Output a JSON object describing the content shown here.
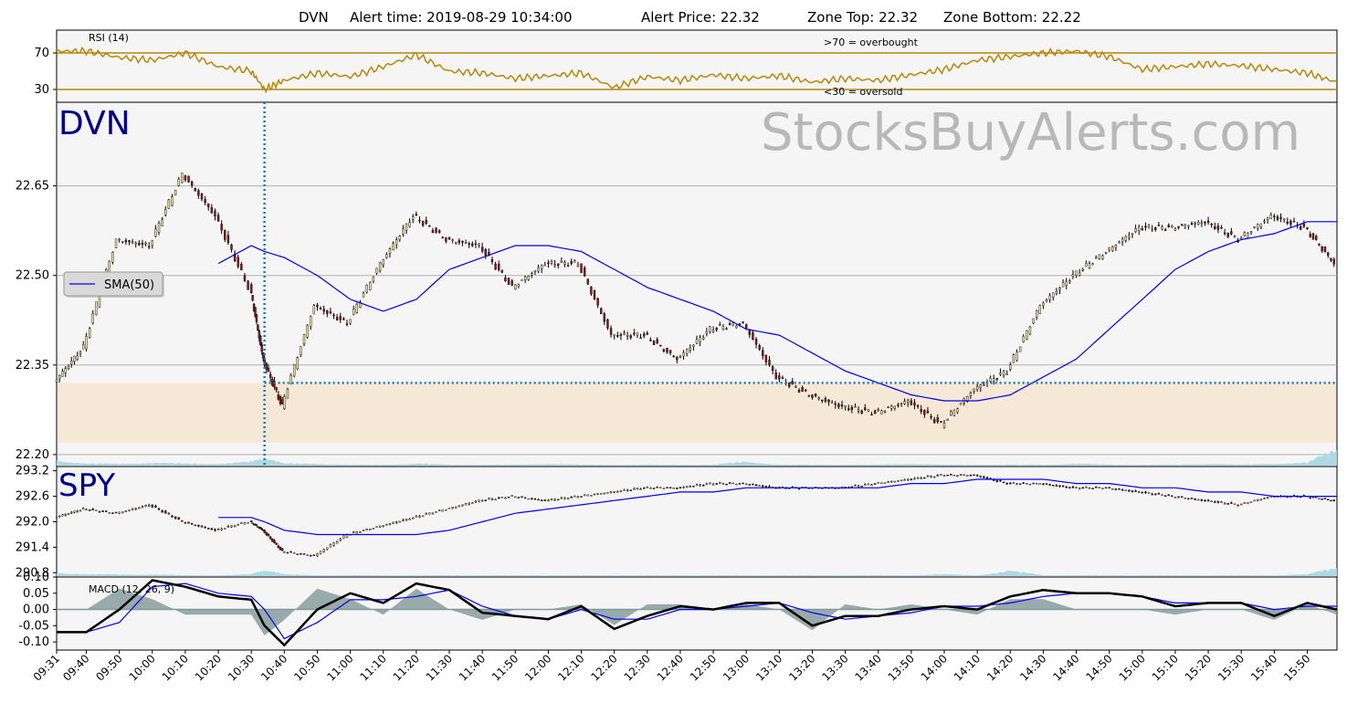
{
  "header": {
    "ticker": "DVN",
    "alert_time_label": "Alert time: 2019-08-29 10:34:00",
    "alert_price_label": "Alert Price: 22.32",
    "zone_top_label": "Zone Top: 22.32",
    "zone_bottom_label": "Zone Bottom: 22.22"
  },
  "watermark": "StocksBuyAlerts.com",
  "colors": {
    "rsi": "#b8860b",
    "sma": "#0000ee",
    "zone": "#f5e8d6",
    "volume": "#add8e6",
    "alert_line": "#1f77b4",
    "macd": "#000000",
    "signal": "#0000ee",
    "histogram": "#708a8a",
    "panel_bg": "#f5f5f5"
  },
  "x_ticks": [
    "09:31",
    "09:40",
    "09:50",
    "10:00",
    "10:10",
    "10:20",
    "10:30",
    "10:40",
    "10:50",
    "11:00",
    "11:10",
    "11:20",
    "11:30",
    "11:40",
    "11:50",
    "12:00",
    "12:10",
    "12:20",
    "12:30",
    "12:40",
    "12:50",
    "13:00",
    "13:10",
    "13:20",
    "13:30",
    "13:40",
    "13:50",
    "14:00",
    "14:10",
    "14:20",
    "14:30",
    "14:40",
    "14:50",
    "15:00",
    "15:10",
    "15:20",
    "15:30",
    "15:40",
    "15:50"
  ],
  "chart_data": [
    {
      "type": "line",
      "panel": "rsi",
      "title": "RSI (14)",
      "ylim": [
        16,
        95
      ],
      "yticks": [
        "70",
        "30"
      ],
      "reference_lines": [
        70,
        30
      ],
      "annotations": [
        ">70 = overbought",
        "<30 = oversold"
      ],
      "x": [
        "09:31",
        "09:40",
        "09:50",
        "10:00",
        "10:10",
        "10:20",
        "10:30",
        "10:34",
        "10:40",
        "10:50",
        "11:00",
        "11:10",
        "11:20",
        "11:30",
        "11:40",
        "11:50",
        "12:00",
        "12:10",
        "12:20",
        "12:30",
        "12:40",
        "12:50",
        "13:00",
        "13:10",
        "13:20",
        "13:30",
        "13:40",
        "13:50",
        "14:00",
        "14:10",
        "14:20",
        "14:30",
        "14:40",
        "14:50",
        "15:00",
        "15:10",
        "15:20",
        "15:30",
        "15:40",
        "15:50",
        "15:59"
      ],
      "values": [
        72,
        72,
        65,
        62,
        70,
        55,
        50,
        30,
        40,
        48,
        44,
        55,
        68,
        50,
        48,
        42,
        45,
        48,
        32,
        44,
        40,
        46,
        42,
        45,
        38,
        42,
        40,
        46,
        52,
        62,
        66,
        70,
        72,
        66,
        52,
        55,
        58,
        56,
        52,
        48,
        38
      ]
    },
    {
      "type": "candlestick",
      "panel": "price",
      "title": "DVN",
      "ylim": [
        22.18,
        22.79
      ],
      "yticks": [
        "22.65",
        "22.50",
        "22.35",
        "22.20"
      ],
      "alert": {
        "time": "10:34",
        "price": 22.32
      },
      "zone": {
        "top": 22.32,
        "bottom": 22.22
      },
      "legend": "SMA(50)",
      "x": [
        "09:31",
        "09:40",
        "09:50",
        "10:00",
        "10:10",
        "10:20",
        "10:30",
        "10:34",
        "10:40",
        "10:50",
        "11:00",
        "11:10",
        "11:20",
        "11:30",
        "11:40",
        "11:50",
        "12:00",
        "12:10",
        "12:20",
        "12:30",
        "12:40",
        "12:50",
        "13:00",
        "13:10",
        "13:20",
        "13:30",
        "13:40",
        "13:50",
        "14:00",
        "14:10",
        "14:20",
        "14:30",
        "14:40",
        "14:50",
        "15:00",
        "15:10",
        "15:20",
        "15:30",
        "15:40",
        "15:50",
        "15:59"
      ],
      "values": [
        22.32,
        22.38,
        22.56,
        22.55,
        22.67,
        22.6,
        22.48,
        22.36,
        22.28,
        22.45,
        22.42,
        22.52,
        22.6,
        22.56,
        22.55,
        22.48,
        22.52,
        22.52,
        22.4,
        22.4,
        22.36,
        22.41,
        22.42,
        22.33,
        22.3,
        22.28,
        22.27,
        22.29,
        22.25,
        22.31,
        22.34,
        22.45,
        22.5,
        22.54,
        22.58,
        22.58,
        22.59,
        22.56,
        22.6,
        22.58,
        22.52
      ],
      "sma50": [
        null,
        null,
        null,
        null,
        null,
        22.52,
        22.55,
        22.54,
        22.53,
        22.5,
        22.46,
        22.44,
        22.46,
        22.51,
        22.53,
        22.55,
        22.55,
        22.54,
        22.51,
        22.48,
        22.46,
        22.44,
        22.41,
        22.4,
        22.37,
        22.34,
        22.32,
        22.3,
        22.29,
        22.29,
        22.3,
        22.33,
        22.36,
        22.41,
        22.46,
        22.51,
        22.54,
        22.56,
        22.57,
        22.59,
        22.59
      ],
      "volume": [
        0.3,
        0.1,
        0.1,
        0.15,
        0.1,
        0.1,
        0.2,
        0.45,
        0.1,
        0.1,
        0.05,
        0.05,
        0.1,
        0.05,
        0.05,
        0.05,
        0.1,
        0.05,
        0.05,
        0.05,
        0.05,
        0.05,
        0.2,
        0.05,
        0.05,
        0.05,
        0.05,
        0.1,
        0.05,
        0.05,
        0.05,
        0.05,
        0.1,
        0.05,
        0.05,
        0.05,
        0.1,
        0.05,
        0.1,
        0.15,
        0.9
      ]
    },
    {
      "type": "candlestick",
      "panel": "spy",
      "title": "SPY",
      "ylim": [
        290.7,
        293.3
      ],
      "yticks": [
        "293.2",
        "292.6",
        "292.0",
        "291.4",
        "290.8"
      ],
      "x": [
        "09:31",
        "09:40",
        "09:50",
        "10:00",
        "10:10",
        "10:20",
        "10:30",
        "10:34",
        "10:40",
        "10:50",
        "11:00",
        "11:10",
        "11:20",
        "11:30",
        "11:40",
        "11:50",
        "12:00",
        "12:10",
        "12:20",
        "12:30",
        "12:40",
        "12:50",
        "13:00",
        "13:10",
        "13:20",
        "13:30",
        "13:40",
        "13:50",
        "14:00",
        "14:10",
        "14:20",
        "14:30",
        "14:40",
        "14:50",
        "15:00",
        "15:10",
        "15:20",
        "15:30",
        "15:40",
        "15:50",
        "15:59"
      ],
      "values": [
        292.1,
        292.3,
        292.2,
        292.4,
        292.0,
        291.8,
        292.0,
        291.8,
        291.3,
        291.2,
        291.7,
        291.9,
        292.1,
        292.3,
        292.5,
        292.6,
        292.5,
        292.6,
        292.7,
        292.8,
        292.8,
        292.9,
        292.9,
        292.8,
        292.8,
        292.8,
        292.9,
        293.0,
        293.1,
        293.1,
        292.9,
        292.9,
        292.8,
        292.8,
        292.7,
        292.6,
        292.5,
        292.4,
        292.6,
        292.6,
        292.5
      ],
      "sma50": [
        null,
        null,
        null,
        null,
        null,
        292.1,
        292.1,
        292.0,
        291.8,
        291.7,
        291.7,
        291.7,
        291.7,
        291.8,
        292.0,
        292.2,
        292.3,
        292.4,
        292.5,
        292.6,
        292.7,
        292.7,
        292.8,
        292.8,
        292.8,
        292.8,
        292.8,
        292.9,
        292.9,
        293.0,
        293.0,
        293.0,
        292.9,
        292.9,
        292.8,
        292.8,
        292.7,
        292.7,
        292.6,
        292.6,
        292.6
      ],
      "volume": [
        0.2,
        0.1,
        0.1,
        0.1,
        0.05,
        0.05,
        0.1,
        0.4,
        0.1,
        0.05,
        0.05,
        0.05,
        0.05,
        0.05,
        0.05,
        0.05,
        0.05,
        0.05,
        0.05,
        0.05,
        0.05,
        0.05,
        0.05,
        0.05,
        0.05,
        0.05,
        0.05,
        0.05,
        0.1,
        0.05,
        0.3,
        0.05,
        0.05,
        0.05,
        0.05,
        0.05,
        0.05,
        0.05,
        0.05,
        0.1,
        0.5
      ]
    },
    {
      "type": "line",
      "panel": "macd",
      "title": "MACD (12, 26, 9)",
      "ylim": [
        -0.125,
        0.1
      ],
      "yticks": [
        "0.10",
        "0.05",
        "0.00",
        "-0.05",
        "-0.10"
      ],
      "x": [
        "09:31",
        "09:40",
        "09:50",
        "10:00",
        "10:10",
        "10:20",
        "10:30",
        "10:34",
        "10:40",
        "10:50",
        "11:00",
        "11:10",
        "11:20",
        "11:30",
        "11:40",
        "11:50",
        "12:00",
        "12:10",
        "12:20",
        "12:30",
        "12:40",
        "12:50",
        "13:00",
        "13:10",
        "13:20",
        "13:30",
        "13:40",
        "13:50",
        "14:00",
        "14:10",
        "14:20",
        "14:30",
        "14:40",
        "14:50",
        "15:00",
        "15:10",
        "15:20",
        "15:30",
        "15:40",
        "15:50",
        "15:59"
      ],
      "series": [
        {
          "name": "macd",
          "values": [
            -0.07,
            -0.07,
            0.0,
            0.09,
            0.07,
            0.04,
            0.03,
            -0.05,
            -0.11,
            0.0,
            0.05,
            0.02,
            0.08,
            0.06,
            -0.01,
            -0.02,
            -0.03,
            0.01,
            -0.06,
            -0.02,
            0.01,
            0.0,
            0.02,
            0.02,
            -0.05,
            -0.02,
            -0.02,
            0.0,
            0.01,
            0.0,
            0.04,
            0.06,
            0.05,
            0.05,
            0.04,
            0.01,
            0.02,
            0.02,
            -0.02,
            0.02,
            0.0
          ]
        },
        {
          "name": "signal",
          "values": [
            -0.07,
            -0.07,
            -0.04,
            0.07,
            0.08,
            0.05,
            0.04,
            0.0,
            -0.09,
            -0.04,
            0.03,
            0.03,
            0.04,
            0.06,
            0.01,
            -0.02,
            -0.03,
            0.0,
            -0.03,
            -0.03,
            0.0,
            0.0,
            0.01,
            0.02,
            -0.01,
            -0.03,
            -0.02,
            -0.01,
            0.01,
            0.01,
            0.02,
            0.04,
            0.05,
            0.05,
            0.04,
            0.02,
            0.02,
            0.02,
            0.0,
            0.01,
            0.01
          ]
        }
      ]
    }
  ]
}
